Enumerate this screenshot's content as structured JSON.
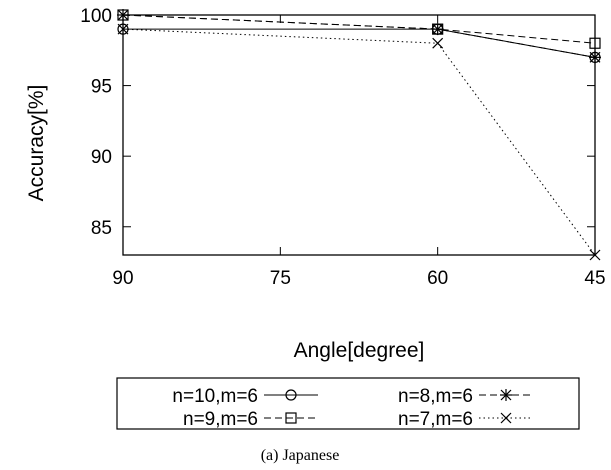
{
  "chart_data": {
    "type": "line",
    "caption": "(a) Japanese",
    "xlabel": "Angle[degree]",
    "ylabel": "Accuracy[%]",
    "x": [
      90,
      60,
      45
    ],
    "x_ticks": [
      90,
      75,
      60,
      45
    ],
    "x_tick_labels": [
      "90",
      "75",
      "60",
      "45"
    ],
    "x_reversed": true,
    "xlim": [
      90,
      45
    ],
    "ylim": [
      83,
      100
    ],
    "y_ticks": [
      85,
      90,
      95,
      100
    ],
    "y_tick_labels": [
      "85",
      "90",
      "95",
      "100"
    ],
    "grid": false,
    "legend_position": "bottom",
    "series": [
      {
        "name": "n=10,m=6",
        "values": [
          99,
          99,
          97
        ],
        "marker": "circle",
        "line_style": "solid"
      },
      {
        "name": "n=8,m=6",
        "values": [
          100,
          99,
          97
        ],
        "marker": "asterisk",
        "line_style": "dashed"
      },
      {
        "name": "n=9,m=6",
        "values": [
          100,
          99,
          98
        ],
        "marker": "square",
        "line_style": "dashed"
      },
      {
        "name": "n=7,m=6",
        "values": [
          99,
          98,
          83
        ],
        "marker": "x",
        "line_style": "dotted"
      }
    ]
  }
}
